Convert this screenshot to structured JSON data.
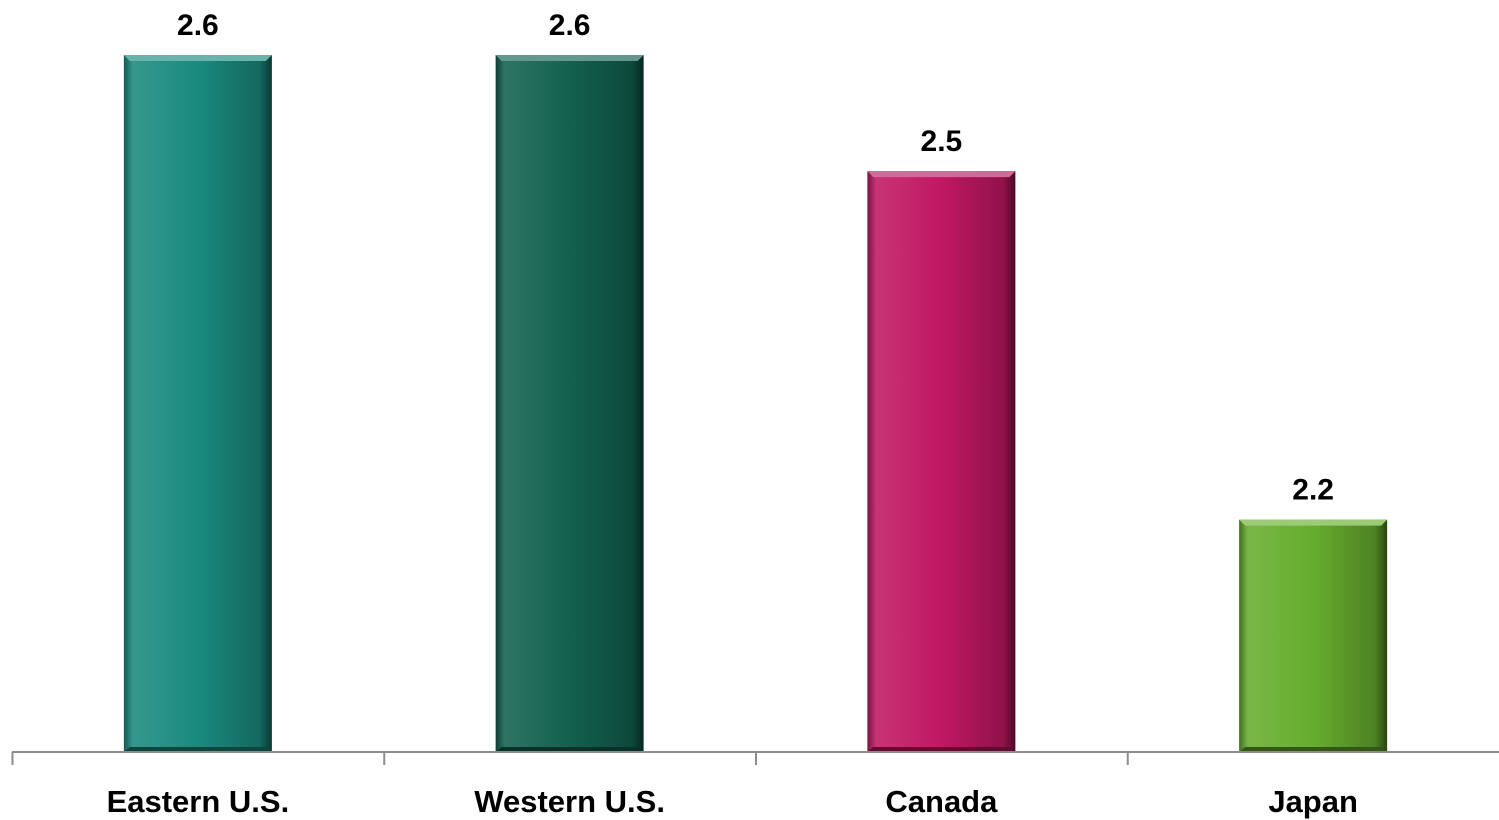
{
  "chart_data": {
    "type": "bar",
    "categories": [
      "Eastern U.S.",
      "Western U.S.",
      "Canada",
      "Japan"
    ],
    "values": [
      2.6,
      2.6,
      2.5,
      2.2
    ],
    "value_labels": [
      "2.6",
      "2.6",
      "2.5",
      "2.2"
    ],
    "colors": [
      "#1a8a7e",
      "#12614f",
      "#c01862",
      "#66ad2d"
    ],
    "title": "",
    "xlabel": "",
    "ylabel": "",
    "ylim": [
      2.0,
      2.6
    ],
    "grid": false,
    "legend": "none"
  }
}
